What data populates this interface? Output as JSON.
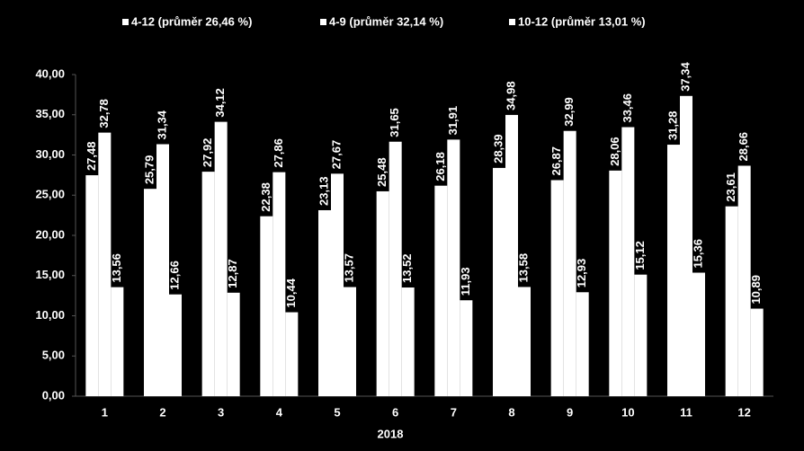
{
  "chart_data": {
    "type": "bar",
    "xlabel": "2018",
    "categories": [
      "1",
      "2",
      "3",
      "4",
      "5",
      "6",
      "7",
      "8",
      "9",
      "10",
      "11",
      "12"
    ],
    "series": [
      {
        "name": "4-12 (průměr 26,46 %)",
        "color": "#ffffff",
        "values": [
          27.48,
          25.79,
          27.92,
          22.38,
          23.13,
          25.48,
          26.18,
          28.39,
          26.87,
          28.06,
          31.28,
          23.61
        ],
        "value_labels": [
          "27,48",
          "25,79",
          "27,92",
          "22,38",
          "23,13",
          "25,48",
          "26,18",
          "28,39",
          "26,87",
          "28,06",
          "31,28",
          "23,61"
        ]
      },
      {
        "name": "4-9 (průměr 32,14 %)",
        "color": "#ffffff",
        "values": [
          32.78,
          31.34,
          34.12,
          27.86,
          27.67,
          31.65,
          31.91,
          34.98,
          32.99,
          33.46,
          37.34,
          28.66
        ],
        "value_labels": [
          "32,78",
          "31,34",
          "34,12",
          "27,86",
          "27,67",
          "31,65",
          "31,91",
          "34,98",
          "32,99",
          "33,46",
          "37,34",
          "28,66"
        ]
      },
      {
        "name": "10-12 (průměr 13,01 %)",
        "color": "#ffffff",
        "values": [
          13.56,
          12.66,
          12.87,
          10.44,
          13.57,
          13.52,
          11.93,
          13.58,
          12.93,
          15.12,
          15.36,
          10.89
        ],
        "value_labels": [
          "13,56",
          "12,66",
          "12,87",
          "10,44",
          "13,57",
          "13,52",
          "11,93",
          "13,58",
          "12,93",
          "15,12",
          "15,36",
          "10,89"
        ]
      }
    ],
    "ylim": [
      0,
      40
    ],
    "yticks": [
      {
        "value": 0,
        "label": "0,00"
      },
      {
        "value": 5,
        "label": "5,00"
      },
      {
        "value": 10,
        "label": "10,00"
      },
      {
        "value": 15,
        "label": "15,00"
      },
      {
        "value": 20,
        "label": "20,00"
      },
      {
        "value": 25,
        "label": "25,00"
      },
      {
        "value": 30,
        "label": "30,00"
      },
      {
        "value": 35,
        "label": "35,00"
      },
      {
        "value": 40,
        "label": "40,00"
      }
    ],
    "grid": false,
    "legend": "top"
  }
}
